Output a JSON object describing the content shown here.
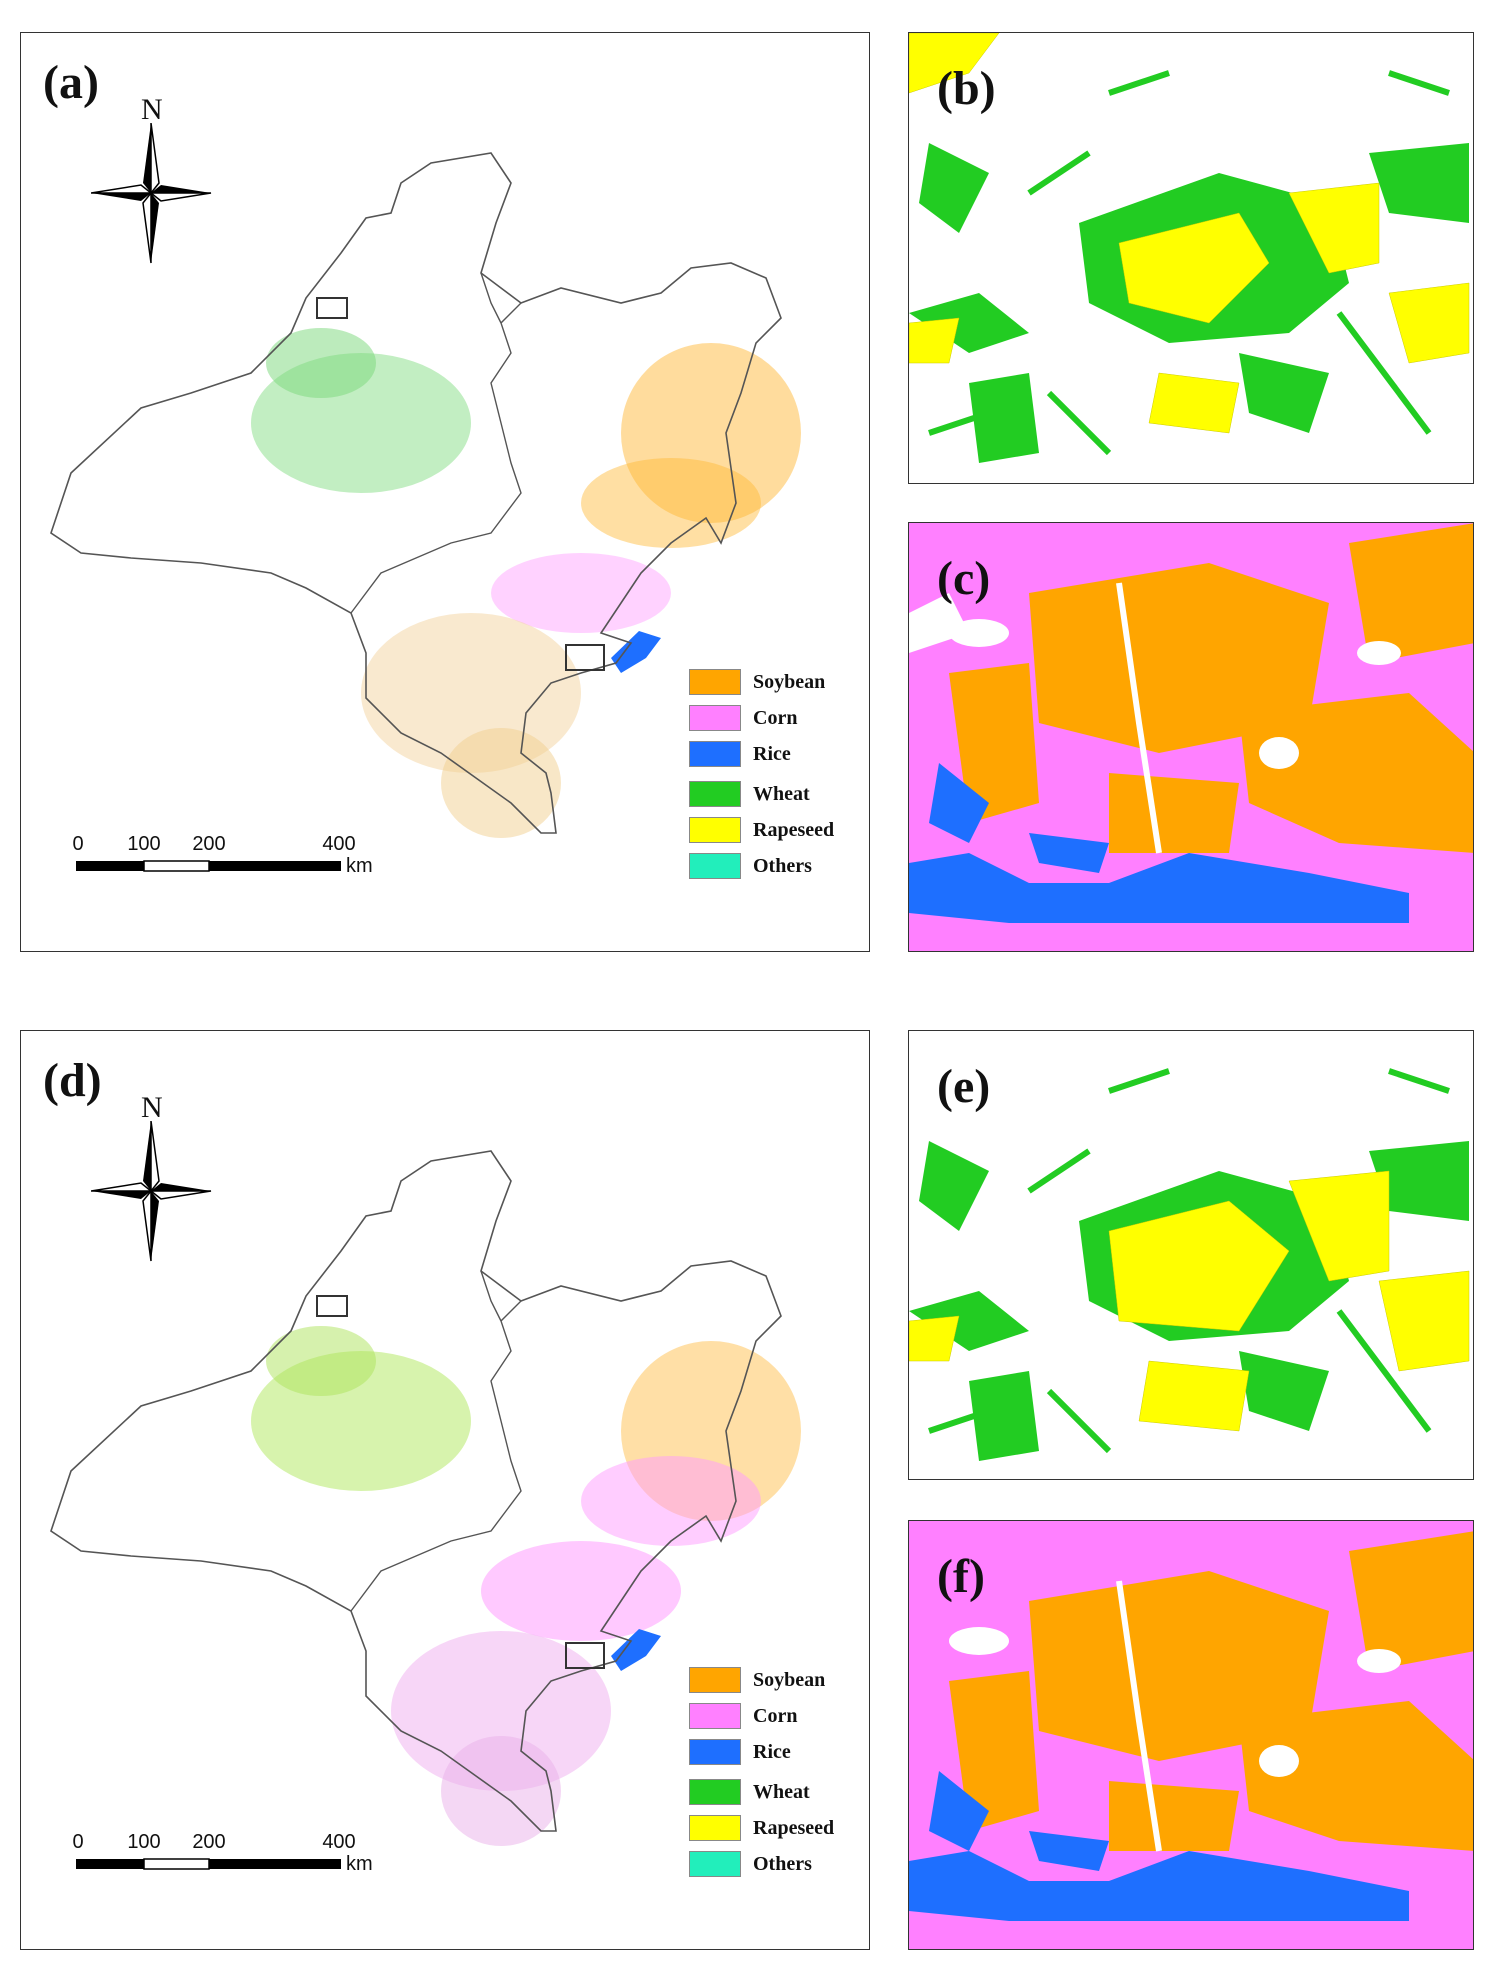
{
  "panels": {
    "a": {
      "label": "(a)"
    },
    "b": {
      "label": "(b)"
    },
    "c": {
      "label": "(c)"
    },
    "d": {
      "label": "(d)"
    },
    "e": {
      "label": "(e)"
    },
    "f": {
      "label": "(f)"
    }
  },
  "north_arrow": {
    "letter": "N"
  },
  "scale_bar": {
    "ticks": [
      "0",
      "100",
      "200",
      "400"
    ],
    "unit": "km"
  },
  "legend": [
    {
      "label": "Soybean",
      "color": "#FFA500"
    },
    {
      "label": "Corn",
      "color": "#FF80FF"
    },
    {
      "label": "Rice",
      "color": "#1E6FFF"
    },
    {
      "label": "Wheat",
      "color": "#22CC22"
    },
    {
      "label": "Rapeseed",
      "color": "#FFFF00"
    },
    {
      "label": "Others",
      "color": "#22EEBB"
    }
  ]
}
